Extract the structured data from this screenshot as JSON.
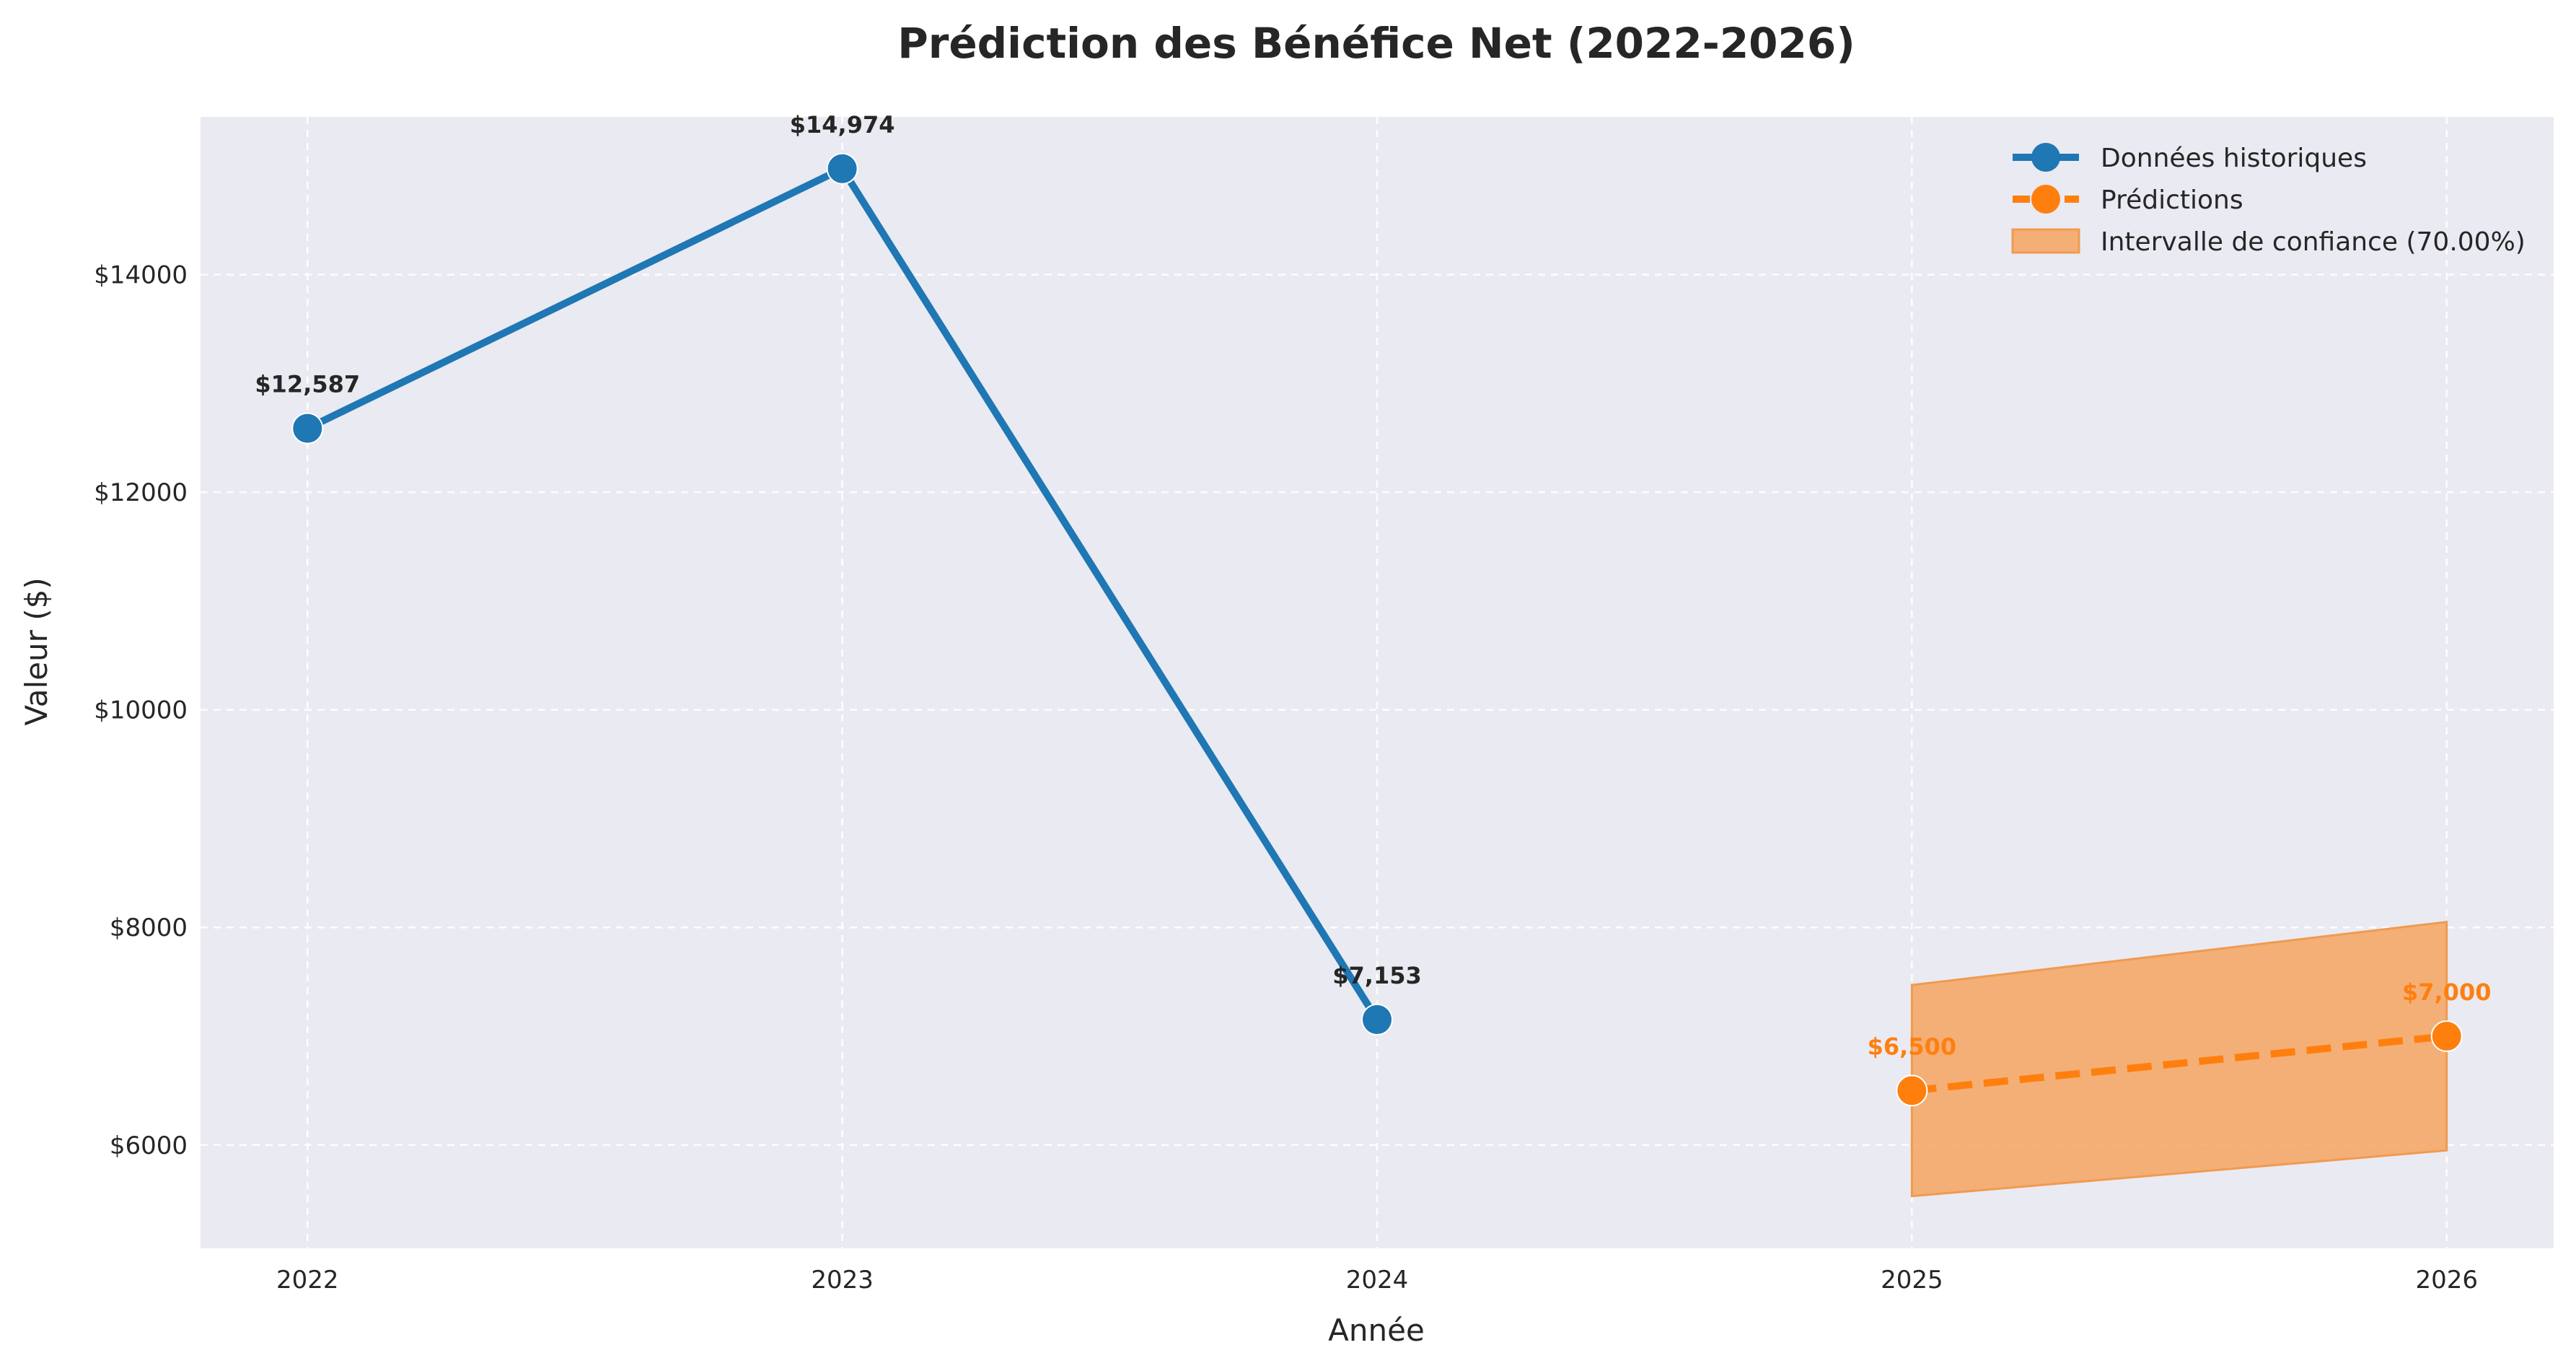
{
  "chart_data": {
    "type": "line",
    "title": "Prédiction des Bénéfice Net (2022-2026)",
    "xlabel": "Année",
    "ylabel": "Valeur ($)",
    "x_ticks": [
      "2022",
      "2023",
      "2024",
      "2025",
      "2026"
    ],
    "y_ticks": [
      {
        "value": 6000,
        "label": "$6000"
      },
      {
        "value": 8000,
        "label": "$8000"
      },
      {
        "value": 10000,
        "label": "$10000"
      },
      {
        "value": 12000,
        "label": "$12000"
      },
      {
        "value": 14000,
        "label": "$14000"
      }
    ],
    "xlim": [
      2021.8,
      2026.2
    ],
    "ylim": [
      5050,
      15450
    ],
    "grid": true,
    "legend_position": "top-right",
    "background": "#eaeaf2",
    "series": [
      {
        "name": "Données historiques",
        "color": "#1f77b4",
        "style": "solid",
        "x": [
          2022,
          2023,
          2024
        ],
        "values": [
          12587,
          14974,
          7153
        ],
        "labels": [
          "$12,587",
          "$14,974",
          "$7,153"
        ]
      },
      {
        "name": "Prédictions",
        "color": "#ff7f0e",
        "style": "dashed",
        "x": [
          2025,
          2026
        ],
        "values": [
          6500,
          7000
        ],
        "labels": [
          "$6,500",
          "$7,000"
        ]
      }
    ],
    "confidence_interval": {
      "name": "Intervalle de confiance (70.00%)",
      "color": "#f4a460",
      "x": [
        2025,
        2026
      ],
      "lower": [
        5530,
        5950
      ],
      "upper": [
        7470,
        8050
      ]
    }
  }
}
